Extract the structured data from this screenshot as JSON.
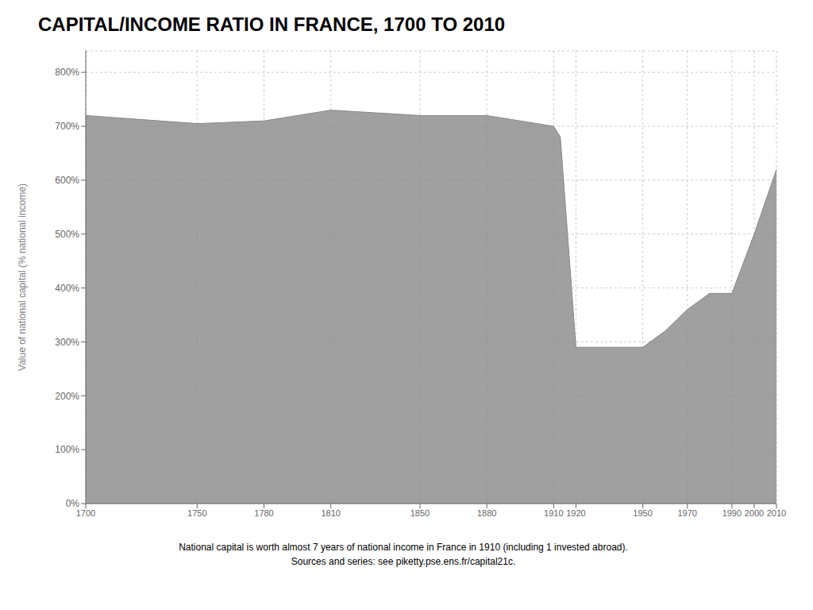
{
  "chart_data": {
    "type": "area",
    "title": "CAPITAL/INCOME RATIO IN FRANCE, 1700 TO 2010",
    "ylabel": "Value of national capital (% national income)",
    "annotations": [
      "National capital is worth almost 7 years of national income in France in 1910 (including 1 invested abroad).",
      "Sources and series: see piketty.pse.ens.fr/capital21c."
    ],
    "x": [
      1700,
      1750,
      1780,
      1810,
      1850,
      1880,
      1910,
      1913,
      1920,
      1950,
      1960,
      1970,
      1980,
      1990,
      2000,
      2010
    ],
    "values": [
      720,
      705,
      710,
      730,
      720,
      720,
      700,
      680,
      290,
      290,
      320,
      360,
      390,
      390,
      500,
      620
    ],
    "color": "#888888",
    "xlim": [
      1700,
      2010
    ],
    "xticks": [
      1700,
      1750,
      1780,
      1810,
      1850,
      1880,
      1910,
      1920,
      1950,
      1970,
      1990,
      2000,
      2010
    ],
    "ylim": [
      0,
      840
    ],
    "yticks": [
      {
        "value": 0,
        "label": "0%"
      },
      {
        "value": 100,
        "label": "100%"
      },
      {
        "value": 200,
        "label": "200%"
      },
      {
        "value": 300,
        "label": "300%"
      },
      {
        "value": 400,
        "label": "400%"
      },
      {
        "value": 500,
        "label": "500%"
      },
      {
        "value": 600,
        "label": "600%"
      },
      {
        "value": 700,
        "label": "700%"
      },
      {
        "value": 800,
        "label": "800%"
      }
    ],
    "grid": true
  }
}
